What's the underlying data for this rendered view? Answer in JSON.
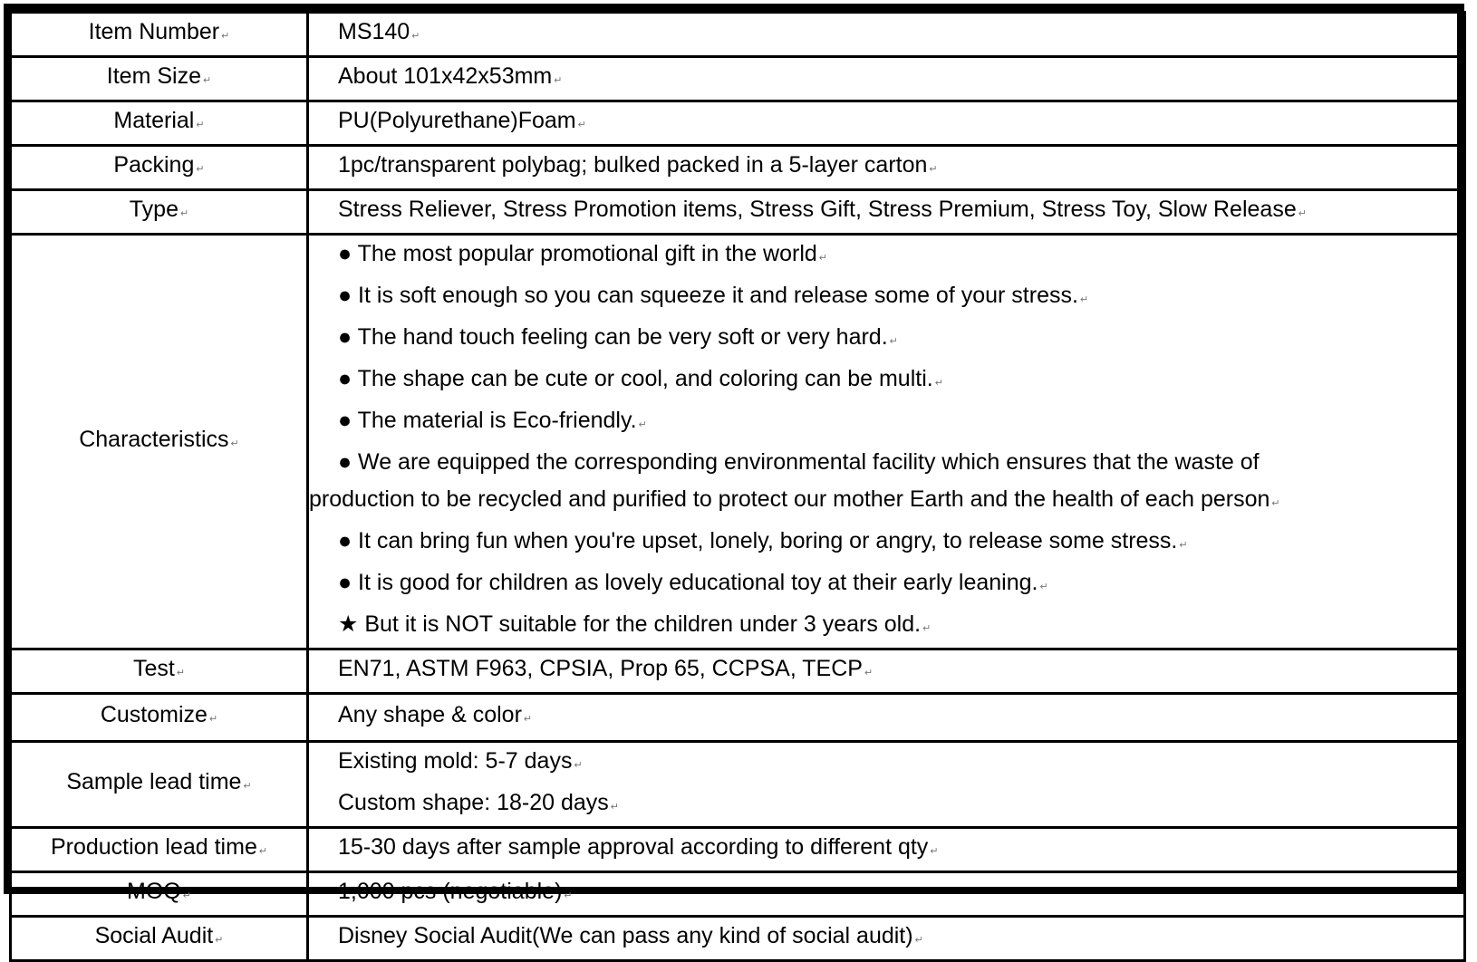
{
  "rows": [
    {
      "label": "Item Number",
      "lines": [
        "MS140"
      ]
    },
    {
      "label": "Item Size",
      "lines": [
        "About 101x42x53mm"
      ]
    },
    {
      "label": "Material",
      "lines": [
        "PU(Polyurethane)Foam"
      ]
    },
    {
      "label": "Packing",
      "lines": [
        "1pc/transparent polybag; bulked packed in a 5-layer carton"
      ]
    },
    {
      "label": "Type",
      "lines": [
        "Stress Reliever, Stress Promotion items, Stress Gift, Stress Premium, Stress Toy, Slow Release"
      ]
    },
    {
      "label": "Characteristics",
      "lines": [
        "● The most popular promotional gift in the world",
        "● It is soft enough so you can squeeze it and release some of your stress.",
        "● The hand touch feeling can be very soft or very hard.",
        "● The shape can be cute or cool, and coloring can be multi.",
        "● The material is Eco-friendly.",
        "● We are equipped the corresponding environmental facility which ensures that the waste of",
        "production to be recycled and purified to protect our mother Earth and the health of each person",
        "● It can bring fun when you're upset, lonely, boring or angry, to release some stress.",
        "● It is good for children as lovely educational toy at their early leaning.",
        "★ But it is NOT suitable for the children under 3 years old."
      ]
    },
    {
      "label": "Test",
      "lines": [
        "EN71, ASTM F963, CPSIA, Prop 65, CCPSA, TECP"
      ]
    },
    {
      "label": "Customize",
      "lines": [
        "Any shape & color"
      ]
    },
    {
      "label": "Sample lead time",
      "lines": [
        "Existing mold: 5-7 days",
        "Custom shape: 18-20 days"
      ]
    },
    {
      "label": "Production lead time",
      "lines": [
        "15-30 days after sample approval according to different qty"
      ]
    },
    {
      "label": "MOQ",
      "lines": [
        "1,000 pcs (negotiable)"
      ]
    },
    {
      "label": "Social Audit",
      "lines": [
        "Disney Social Audit(We can pass any kind of social audit)"
      ]
    }
  ]
}
